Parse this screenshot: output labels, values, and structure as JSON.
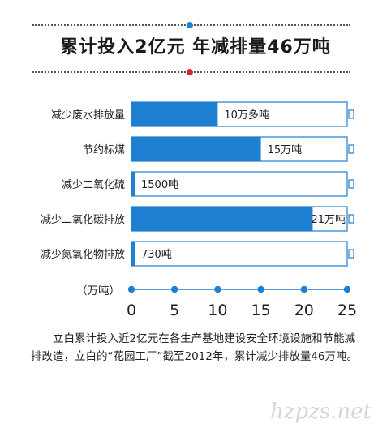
{
  "colors": {
    "bar": "#1f7fd0",
    "outline": "#1f7fd0",
    "axis": "#1f7fd0",
    "dot_blue": "#1f7fd0",
    "dot_red": "#d9232a"
  },
  "header": {
    "title": "累计投入2亿元 年减排量46万吨"
  },
  "chart_data": {
    "type": "bar",
    "orientation": "horizontal",
    "categories": [
      "减少废水排放量",
      "节约标煤",
      "减少二氧化硫",
      "减少二氧化碳排放",
      "减少氮氧化物排放"
    ],
    "values": [
      10,
      15,
      0.15,
      21,
      0.073
    ],
    "value_labels": [
      "10万多吨",
      "15万吨",
      "1500吨",
      "21万吨",
      "730吨"
    ],
    "xlim": [
      0,
      25
    ],
    "xticks": [
      "0",
      "5",
      "10",
      "15",
      "20",
      "25"
    ],
    "unit_label": "（万吨）",
    "grid": false
  },
  "caption": "立白累计投入近2亿元在各生产基地建设安全环境设施和节能减排改造，立白的“花园工厂”截至2012年，累计减少排放量46万吨。",
  "watermark": "hzpzs.net"
}
